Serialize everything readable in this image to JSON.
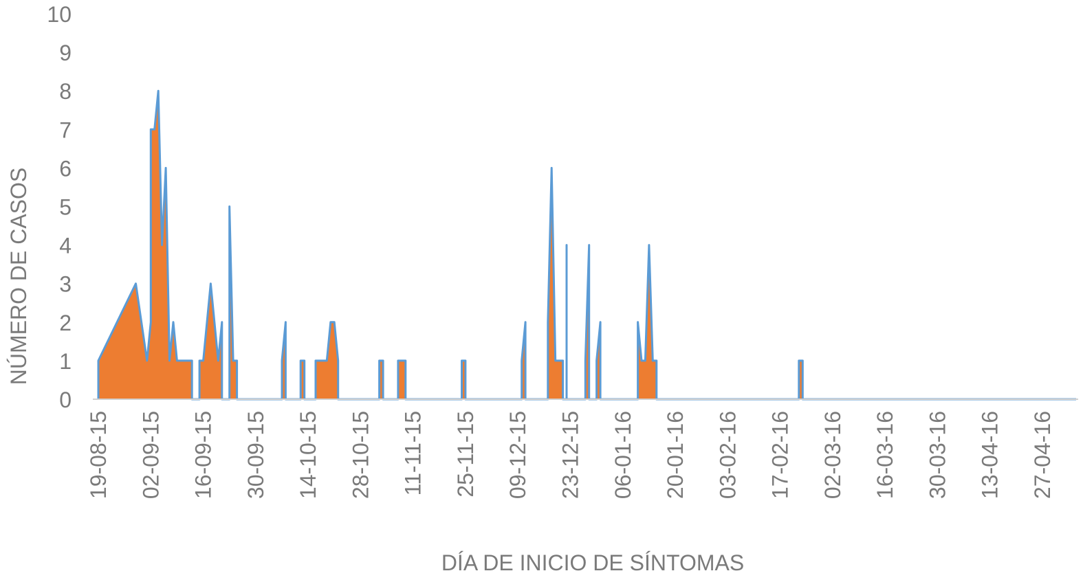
{
  "chart_data": {
    "type": "area",
    "title": "",
    "xlabel": "DÍA DE INICIO DE SÍNTOMAS",
    "ylabel": "NÚMERO DE CASOS",
    "ylim": [
      0,
      10
    ],
    "yticks": [
      "0",
      "1",
      "2",
      "3",
      "4",
      "5",
      "6",
      "7",
      "8",
      "9",
      "10"
    ],
    "xlim": [
      "2015-08-19",
      "2016-05-06"
    ],
    "xticks": [
      {
        "date": "2015-08-19",
        "label": "19-08-15"
      },
      {
        "date": "2015-09-02",
        "label": "02-09-15"
      },
      {
        "date": "2015-09-16",
        "label": "16-09-15"
      },
      {
        "date": "2015-09-30",
        "label": "30-09-15"
      },
      {
        "date": "2015-10-14",
        "label": "14-10-15"
      },
      {
        "date": "2015-10-28",
        "label": "28-10-15"
      },
      {
        "date": "2015-11-11",
        "label": "11-11-15"
      },
      {
        "date": "2015-11-25",
        "label": "25-11-15"
      },
      {
        "date": "2015-12-09",
        "label": "09-12-15"
      },
      {
        "date": "2015-12-23",
        "label": "23-12-15"
      },
      {
        "date": "2016-01-06",
        "label": "06-01-16"
      },
      {
        "date": "2016-01-20",
        "label": "20-01-16"
      },
      {
        "date": "2016-02-03",
        "label": "03-02-16"
      },
      {
        "date": "2016-02-17",
        "label": "17-02-16"
      },
      {
        "date": "2016-03-02",
        "label": "02-03-16"
      },
      {
        "date": "2016-03-16",
        "label": "16-03-16"
      },
      {
        "date": "2016-03-30",
        "label": "30-03-16"
      },
      {
        "date": "2016-04-13",
        "label": "13-04-16"
      },
      {
        "date": "2016-04-27",
        "label": "27-04-16"
      }
    ],
    "grid": false,
    "legend": "none",
    "series": [
      {
        "color_fill": "#ed7d31",
        "color_line": "#5b9bd5",
        "points": [
          [
            "2015-08-19",
            0
          ],
          [
            "2015-08-19",
            1
          ],
          [
            "2015-08-29",
            3
          ],
          [
            "2015-09-01",
            1
          ],
          [
            "2015-09-02",
            2
          ],
          [
            "2015-09-02",
            7
          ],
          [
            "2015-09-03",
            7
          ],
          [
            "2015-09-04",
            8
          ],
          [
            "2015-09-05",
            4
          ],
          [
            "2015-09-06",
            6
          ],
          [
            "2015-09-07",
            1
          ],
          [
            "2015-09-08",
            2
          ],
          [
            "2015-09-09",
            1
          ],
          [
            "2015-09-13",
            1
          ],
          [
            "2015-09-13",
            0
          ],
          [
            "2015-09-15",
            0
          ],
          [
            "2015-09-15",
            1
          ],
          [
            "2015-09-16",
            1
          ],
          [
            "2015-09-18",
            3
          ],
          [
            "2015-09-20",
            1
          ],
          [
            "2015-09-21",
            2
          ],
          [
            "2015-09-21",
            0
          ],
          [
            "2015-09-23",
            0
          ],
          [
            "2015-09-23",
            5
          ],
          [
            "2015-09-24",
            1
          ],
          [
            "2015-09-25",
            1
          ],
          [
            "2015-09-25",
            0
          ],
          [
            "2015-10-07",
            0
          ],
          [
            "2015-10-07",
            1
          ],
          [
            "2015-10-08",
            2
          ],
          [
            "2015-10-08",
            0
          ],
          [
            "2015-10-12",
            0
          ],
          [
            "2015-10-12",
            1
          ],
          [
            "2015-10-13",
            1
          ],
          [
            "2015-10-13",
            0
          ],
          [
            "2015-10-16",
            0
          ],
          [
            "2015-10-16",
            1
          ],
          [
            "2015-10-19",
            1
          ],
          [
            "2015-10-20",
            2
          ],
          [
            "2015-10-21",
            2
          ],
          [
            "2015-10-22",
            1
          ],
          [
            "2015-10-22",
            0
          ],
          [
            "2015-11-02",
            0
          ],
          [
            "2015-11-02",
            1
          ],
          [
            "2015-11-03",
            1
          ],
          [
            "2015-11-03",
            0
          ],
          [
            "2015-11-07",
            0
          ],
          [
            "2015-11-07",
            1
          ],
          [
            "2015-11-09",
            1
          ],
          [
            "2015-11-09",
            0
          ],
          [
            "2015-11-24",
            0
          ],
          [
            "2015-11-24",
            1
          ],
          [
            "2015-11-25",
            1
          ],
          [
            "2015-11-25",
            0
          ],
          [
            "2015-12-10",
            0
          ],
          [
            "2015-12-10",
            1
          ],
          [
            "2015-12-11",
            2
          ],
          [
            "2015-12-11",
            0
          ],
          [
            "2015-12-17",
            0
          ],
          [
            "2015-12-17",
            2
          ],
          [
            "2015-12-18",
            6
          ],
          [
            "2015-12-19",
            1
          ],
          [
            "2015-12-21",
            1
          ],
          [
            "2015-12-21",
            0
          ],
          [
            "2015-12-22",
            0
          ],
          [
            "2015-12-22",
            4
          ],
          [
            "2015-12-22",
            0
          ],
          [
            "2015-12-27",
            0
          ],
          [
            "2015-12-27",
            1
          ],
          [
            "2015-12-28",
            4
          ],
          [
            "2015-12-28",
            0
          ],
          [
            "2015-12-30",
            0
          ],
          [
            "2015-12-30",
            1
          ],
          [
            "2015-12-31",
            2
          ],
          [
            "2015-12-31",
            0
          ],
          [
            "2016-01-10",
            0
          ],
          [
            "2016-01-10",
            2
          ],
          [
            "2016-01-11",
            1
          ],
          [
            "2016-01-12",
            1
          ],
          [
            "2016-01-13",
            4
          ],
          [
            "2016-01-14",
            1
          ],
          [
            "2016-01-15",
            1
          ],
          [
            "2016-01-15",
            0
          ],
          [
            "2016-02-22",
            0
          ],
          [
            "2016-02-22",
            1
          ],
          [
            "2016-02-23",
            1
          ],
          [
            "2016-02-23",
            0
          ],
          [
            "2016-05-06",
            0
          ]
        ]
      }
    ]
  }
}
